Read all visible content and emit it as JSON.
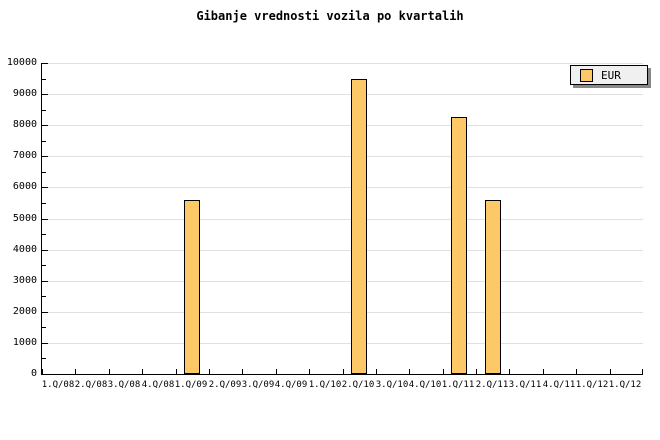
{
  "chart_data": {
    "type": "bar",
    "title": "Gibanje vrednosti vozila po kvartalih",
    "categories": [
      "1.Q/08",
      "2.Q/08",
      "3.Q/08",
      "4.Q/08",
      "1.Q/09",
      "2.Q/09",
      "3.Q/09",
      "4.Q/09",
      "1.Q/10",
      "2.Q/10",
      "3.Q/10",
      "4.Q/10",
      "1.Q/11",
      "2.Q/11",
      "3.Q/11",
      "4.Q/11",
      "1.Q/12",
      "1.Q/12"
    ],
    "series": [
      {
        "name": "EUR",
        "values": [
          null,
          null,
          null,
          null,
          5600,
          null,
          null,
          null,
          null,
          9500,
          null,
          null,
          8250,
          5600,
          null,
          null,
          null,
          null
        ]
      }
    ],
    "xlabel": "",
    "ylabel": "",
    "ylim": [
      0,
      10000
    ],
    "ytick_major": 1000,
    "ytick_minor": 500,
    "ytick_labels": [
      "0",
      "1000",
      "2000",
      "3000",
      "4000",
      "5000",
      "6000",
      "7000",
      "8000",
      "9000",
      "10000"
    ],
    "grid": true,
    "legend": {
      "position": "top-right",
      "entries": [
        "EUR"
      ]
    },
    "colors": {
      "bar_fill": "#FDC868",
      "bar_border": "#000000",
      "grid_line": "#E0E0E0",
      "axis": "#000000",
      "legend_bg": "#F0F0F0",
      "legend_shadow": "#888888",
      "background": "#FFFFFF",
      "text": "#000000"
    }
  }
}
